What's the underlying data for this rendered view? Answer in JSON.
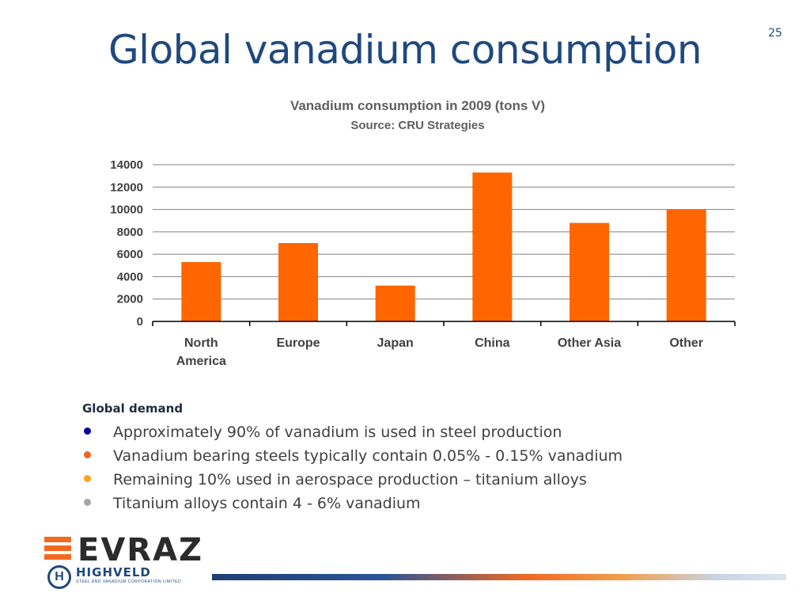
{
  "slide": {
    "number": "25",
    "title": "Global vanadium consumption"
  },
  "chart_data": {
    "type": "bar",
    "title": "Vanadium consumption in 2009 (tons V)",
    "subtitle": "Source: CRU Strategies",
    "categories": [
      "North America",
      "Europe",
      "Japan",
      "China",
      "Other Asia",
      "Other"
    ],
    "category_lines": [
      [
        "North",
        "America"
      ],
      [
        "Europe"
      ],
      [
        "Japan"
      ],
      [
        "China"
      ],
      [
        "Other Asia"
      ],
      [
        "Other"
      ]
    ],
    "values": [
      5300,
      7000,
      3200,
      13300,
      8800,
      10000
    ],
    "ylim": [
      0,
      14000
    ],
    "yticks": [
      0,
      2000,
      4000,
      6000,
      8000,
      10000,
      12000,
      14000
    ],
    "xlabel": "",
    "ylabel": "",
    "grid": true,
    "bar_color": "#ff6600",
    "grid_color": "#808080"
  },
  "demand": {
    "heading": "Global demand",
    "bullets": [
      {
        "text": "Approximately 90% of vanadium is used in steel production",
        "color": "#000099"
      },
      {
        "text": "Vanadium bearing steels typically contain 0.05% - 0.15% vanadium",
        "color": "#f26522"
      },
      {
        "text": "Remaining 10% used in aerospace production – titanium alloys",
        "color": "#ffa31a"
      },
      {
        "text": "Titanium alloys contain 4 - 6% vanadium",
        "color": "#a6a6a6"
      }
    ]
  },
  "logo": {
    "brand": "EVRAZ",
    "subbrand": "HIGHVELD",
    "tagline": "STEEL AND VANADIUM CORPORATION LIMITED",
    "h_mark": "H",
    "brand_color": "#f26a21",
    "mark_color": "#1f497d"
  }
}
